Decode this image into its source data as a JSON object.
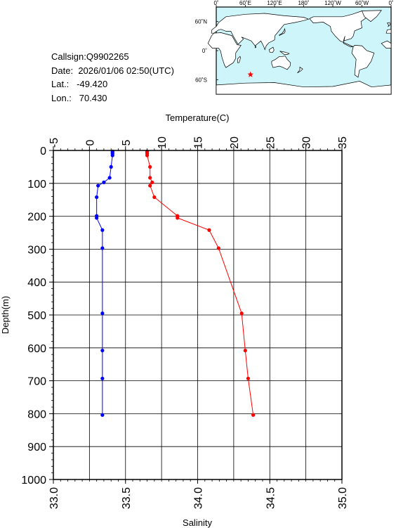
{
  "station": {
    "callsign_label": "Callsign:",
    "callsign": "Q9902265",
    "date_label": "Date:",
    "date": "2026/01/06 02:50(UTC)",
    "lat_label": "Lat.:",
    "lat": "-49.420",
    "lon_label": "Lon.:",
    "lon": "70.430"
  },
  "map": {
    "top_labels": [
      "0˚",
      "60˚E",
      "120˚E",
      "180˚",
      "120˚W",
      "60˚W",
      "0˚"
    ],
    "right_labels": [
      "60˚N",
      "0˚",
      "60˚S"
    ],
    "ocean_color": "#cdf5fa",
    "land_color": "#ffffff",
    "marker_color": "#ff0000",
    "marker_icon": "star-icon",
    "marker_lon": 70.43,
    "marker_lat": -49.42
  },
  "chart_data": {
    "type": "line",
    "grid": true,
    "ylabel": "Depth(m)",
    "ylim": [
      1000,
      0
    ],
    "yticks": [
      "0",
      "100",
      "200",
      "300",
      "400",
      "500",
      "600",
      "700",
      "800",
      "900",
      "1000"
    ],
    "temperature_axis": {
      "label": "Temperature(C)",
      "position": "top",
      "range": [
        -5,
        35
      ],
      "ticks": [
        "-5",
        "0",
        "5",
        "10",
        "15",
        "20",
        "25",
        "30",
        "35"
      ]
    },
    "salinity_axis": {
      "label": "Salinity",
      "position": "bottom",
      "range": [
        33.0,
        35.0
      ],
      "ticks": [
        "33.0",
        "33.5",
        "34.0",
        "34.5",
        "35.0"
      ]
    },
    "series": [
      {
        "name": "Temperature",
        "color": "#ff0000",
        "axis": "temperature",
        "points": [
          [
            8.0,
            3
          ],
          [
            8.0,
            6
          ],
          [
            8.0,
            10
          ],
          [
            8.0,
            15
          ],
          [
            8.4,
            50
          ],
          [
            8.4,
            83
          ],
          [
            8.7,
            97
          ],
          [
            8.4,
            107
          ],
          [
            9.0,
            142
          ],
          [
            12.2,
            199
          ],
          [
            12.2,
            205
          ],
          [
            16.6,
            242
          ],
          [
            17.9,
            297
          ],
          [
            21.1,
            495
          ],
          [
            21.6,
            608
          ],
          [
            22.0,
            693
          ],
          [
            22.7,
            804
          ]
        ]
      },
      {
        "name": "Salinity",
        "color": "#0000ff",
        "axis": "salinity",
        "points": [
          [
            33.41,
            3
          ],
          [
            33.41,
            6
          ],
          [
            33.41,
            10
          ],
          [
            33.41,
            15
          ],
          [
            33.4,
            50
          ],
          [
            33.39,
            83
          ],
          [
            33.35,
            97
          ],
          [
            33.31,
            107
          ],
          [
            33.3,
            142
          ],
          [
            33.3,
            199
          ],
          [
            33.3,
            205
          ],
          [
            33.34,
            242
          ],
          [
            33.34,
            297
          ],
          [
            33.34,
            495
          ],
          [
            33.34,
            608
          ],
          [
            33.34,
            693
          ],
          [
            33.34,
            804
          ]
        ]
      }
    ]
  }
}
